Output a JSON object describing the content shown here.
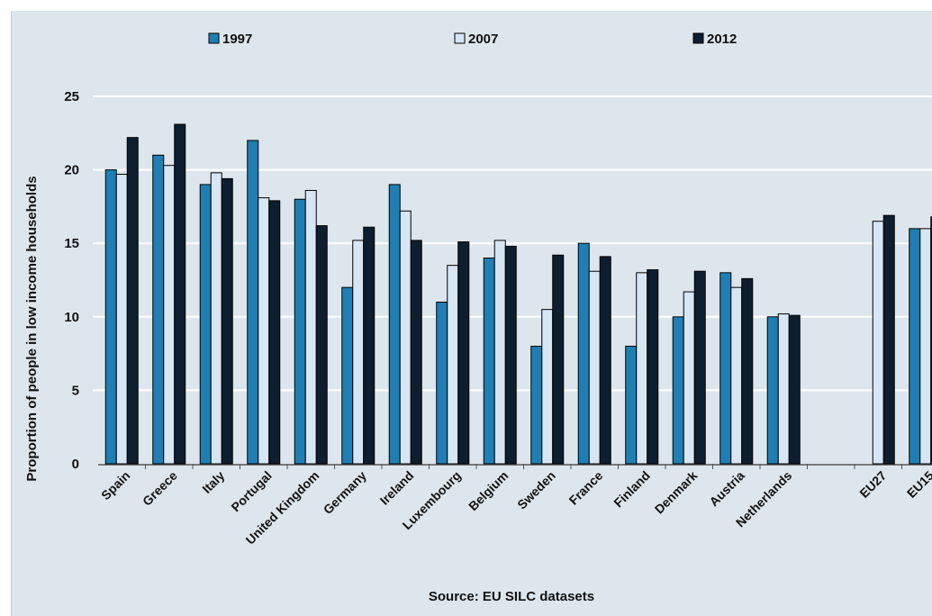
{
  "chart_data": {
    "type": "bar",
    "title": "",
    "xlabel": "",
    "ylabel": "Proportion of people in low income households",
    "ylim": [
      0,
      25
    ],
    "yticks": [
      0,
      5,
      10,
      15,
      20,
      25
    ],
    "grid": true,
    "legend_position": "top",
    "source": "Source: EU SILC datasets",
    "categories": [
      "Spain",
      "Greece",
      "Italy",
      "Portugal",
      "United Kingdom",
      "Germany",
      "Ireland",
      "Luxembourg",
      "Belgium",
      "Sweden",
      "France",
      "Finland",
      "Denmark",
      "Austria",
      "Netherlands",
      "",
      "EU27",
      "EU15"
    ],
    "series": [
      {
        "name": "1997",
        "color": "#1f7fb4",
        "values": [
          20,
          21,
          19,
          22,
          18,
          12,
          19,
          11,
          14,
          8,
          15,
          8,
          10,
          13,
          10,
          null,
          null,
          16
        ]
      },
      {
        "name": "2007",
        "color": "#d6e6f5",
        "values": [
          19.7,
          20.3,
          19.8,
          18.1,
          18.6,
          15.2,
          17.2,
          13.5,
          15.2,
          10.5,
          13.1,
          13,
          11.7,
          12,
          10.2,
          null,
          16.5,
          16
        ]
      },
      {
        "name": "2012",
        "color": "#0d1e2e",
        "values": [
          22.2,
          23.1,
          19.4,
          17.9,
          16.2,
          16.1,
          15.2,
          15.1,
          14.8,
          14.2,
          14.1,
          13.2,
          13.1,
          12.6,
          10.1,
          null,
          16.9,
          16.8
        ]
      }
    ]
  }
}
